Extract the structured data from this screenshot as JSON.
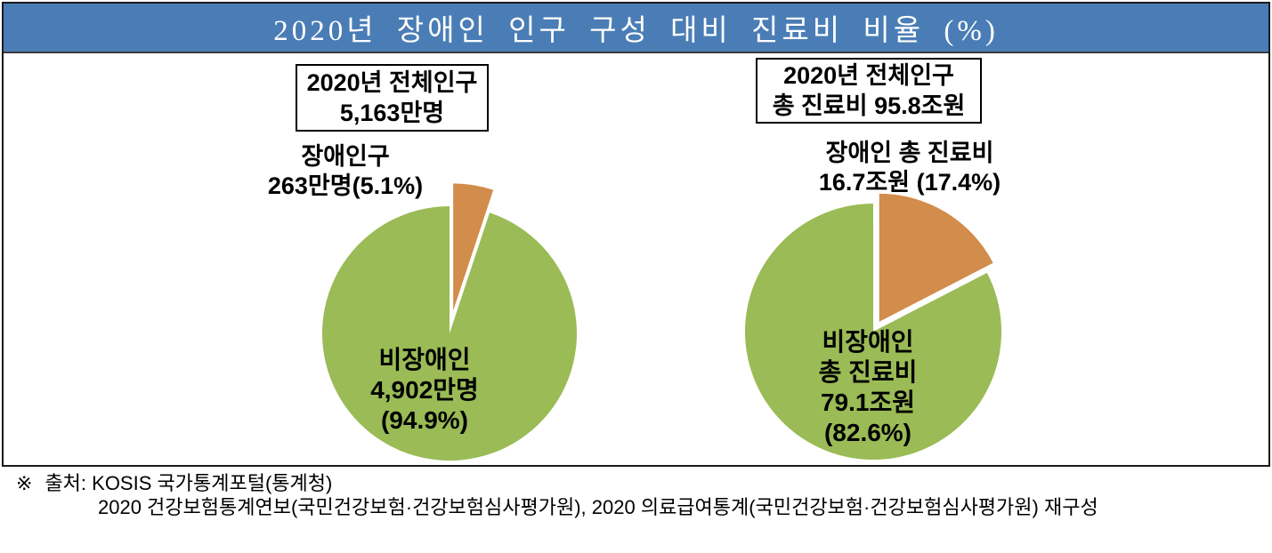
{
  "title": "2020년 장애인 인구 구성 대비 진료비 비율 (%)",
  "colors": {
    "header_bg": "#4A7DB5",
    "green": "#9ABB55",
    "orange": "#D28C4B",
    "frame_border": "#1a1a1a",
    "title_text": "#FFFFFF"
  },
  "left_chart": {
    "info_box": {
      "line1": "2020년 전체인구",
      "line2": "5,163만명"
    },
    "callout": {
      "line1": "장애인구",
      "line2": "263만명(5.1%)"
    },
    "inner_label": {
      "line1": "비장애인",
      "line2": "4,902만명",
      "line3": "(94.9%)"
    }
  },
  "right_chart": {
    "info_box": {
      "line1": "2020년 전체인구",
      "line2": "총 진료비 95.8조원"
    },
    "callout": {
      "line1": "장애인 총 진료비",
      "line2": "16.7조원 (17.4%)"
    },
    "inner_label": {
      "line1": "비장애인",
      "line2": "총 진료비",
      "line3": "79.1조원",
      "line4": "(82.6%)"
    }
  },
  "footer": {
    "marker": "※",
    "line1": "출처: KOSIS 국가통계포털(통계청)",
    "line2": "2020 건강보험통계연보(국민건강보험·건강보험심사평가원), 2020 의료급여통계(국민건강보험·건강보험심사평가원) 재구성"
  },
  "chart_data": [
    {
      "type": "pie",
      "title": "2020년 전체인구 5,163만명",
      "total_text": "5,163만명",
      "start_angle_deg": -90,
      "direction": "clockwise",
      "legend": "none",
      "slices": [
        {
          "label": "장애인구",
          "value_text": "263만명",
          "percent": 5.1,
          "color": "#D28C4B",
          "exploded": true
        },
        {
          "label": "비장애인",
          "value_text": "4,902만명",
          "percent": 94.9,
          "color": "#9ABB55",
          "exploded": false
        }
      ]
    },
    {
      "type": "pie",
      "title": "2020년 전체인구 총 진료비 95.8조원",
      "total_text": "95.8조원",
      "start_angle_deg": -90,
      "direction": "clockwise",
      "legend": "none",
      "slices": [
        {
          "label": "장애인 총 진료비",
          "value_text": "16.7조원",
          "percent": 17.4,
          "color": "#D28C4B",
          "exploded": true
        },
        {
          "label": "비장애인 총 진료비",
          "value_text": "79.1조원",
          "percent": 82.6,
          "color": "#9ABB55",
          "exploded": false
        }
      ]
    }
  ]
}
